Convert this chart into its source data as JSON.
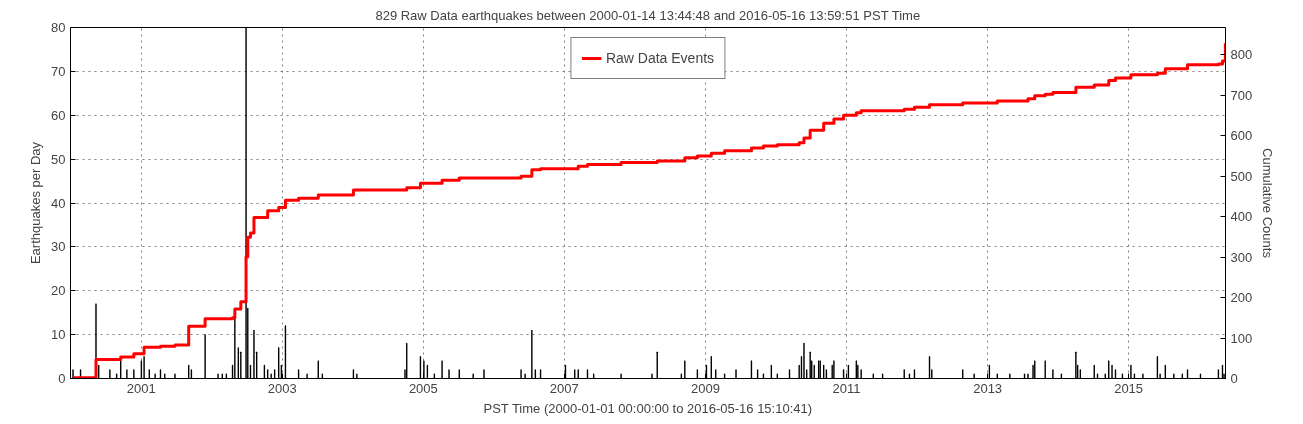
{
  "chart_data": {
    "type": "bar",
    "title": "829 Raw Data earthquakes between 2000-01-14 13:44:48 and 2016-05-16 13:59:51 PST Time",
    "xlabel": "PST Time (2000-01-01 00:00:00 to 2016-05-16 15:10:41)",
    "ylabel": "Earthquakes per Day",
    "y2label": "Cumulative Counts",
    "xlim": [
      "2000-01-01",
      "2016-05-16T15:10"
    ],
    "xticks": [
      {
        "value": "2001-01-01",
        "label": "2001"
      },
      {
        "value": "2003-01-01",
        "label": "2003"
      },
      {
        "value": "2005-01-01",
        "label": "2005"
      },
      {
        "value": "2007-01-01",
        "label": "2007"
      },
      {
        "value": "2009-01-01",
        "label": "2009"
      },
      {
        "value": "2011-01-01",
        "label": "2011"
      },
      {
        "value": "2013-01-01",
        "label": "2013"
      },
      {
        "value": "2015-01-01",
        "label": "2015"
      }
    ],
    "ylim": [
      0,
      80
    ],
    "yticks": [
      0,
      10,
      20,
      30,
      40,
      50,
      60,
      70,
      80
    ],
    "y2lim": [
      0,
      868
    ],
    "y2ticks": [
      0,
      100,
      200,
      300,
      400,
      500,
      600,
      700,
      800
    ],
    "grid": true,
    "legend": "top",
    "series": [
      {
        "color": "#000000",
        "x": [
          "2000-01-14",
          "2000-02-22",
          "2000-05-12",
          "2000-05-26",
          "2000-07-23",
          "2000-08-27",
          "2000-09-17",
          "2000-10-19",
          "2000-11-24",
          "2001-01-02",
          "2001-01-16",
          "2001-02-12",
          "2001-03-14",
          "2001-04-11",
          "2001-05-03",
          "2001-06-25",
          "2001-09-04",
          "2001-09-18",
          "2001-11-28",
          "2002-02-03",
          "2002-02-25",
          "2002-03-18",
          "2002-04-19",
          "2002-05-01",
          "2002-05-19",
          "2002-06-01",
          "2002-06-28",
          "2002-07-07",
          "2002-07-21",
          "2002-08-08",
          "2002-08-22",
          "2002-10-01",
          "2002-10-18",
          "2002-11-05",
          "2002-11-23",
          "2002-12-14",
          "2002-12-28",
          "2003-01-18",
          "2003-03-27",
          "2003-05-10",
          "2003-07-07",
          "2003-07-28",
          "2004-01-05",
          "2004-01-23",
          "2004-09-28",
          "2004-10-07",
          "2004-12-17",
          "2005-01-04",
          "2005-01-22",
          "2005-02-27",
          "2005-04-08",
          "2005-05-14",
          "2005-07-06",
          "2005-09-16",
          "2005-11-11",
          "2006-05-22",
          "2006-06-12",
          "2006-07-17",
          "2006-08-04",
          "2006-08-31",
          "2007-01-07",
          "2007-02-24",
          "2007-03-14",
          "2007-05-01",
          "2007-06-02",
          "2007-10-22",
          "2008-03-30",
          "2008-04-26",
          "2008-08-29",
          "2008-09-16",
          "2008-11-20",
          "2009-01-06",
          "2009-01-31",
          "2009-02-23",
          "2009-04-10",
          "2009-06-08",
          "2009-08-27",
          "2009-09-28",
          "2009-10-28",
          "2009-12-08",
          "2010-01-08",
          "2010-03-12",
          "2010-05-01",
          "2010-05-13",
          "2010-05-26",
          "2010-06-09",
          "2010-06-27",
          "2010-07-05",
          "2010-07-18",
          "2010-08-10",
          "2010-08-18",
          "2010-09-05",
          "2010-09-19",
          "2010-10-19",
          "2010-10-28",
          "2010-12-17",
          "2011-01-11",
          "2011-02-21",
          "2011-03-01",
          "2011-03-18",
          "2011-05-20",
          "2011-07-07",
          "2011-10-27",
          "2011-11-23",
          "2011-12-19",
          "2012-03-06",
          "2012-03-18",
          "2012-08-25",
          "2012-10-23",
          "2013-01-10",
          "2013-02-20",
          "2013-04-26",
          "2013-07-11",
          "2013-07-29",
          "2013-08-24",
          "2013-09-02",
          "2013-10-26",
          "2013-12-05",
          "2014-01-18",
          "2014-04-03",
          "2014-04-12",
          "2014-04-26",
          "2014-07-07",
          "2014-07-24",
          "2014-09-02",
          "2014-09-20",
          "2014-10-07",
          "2014-10-25",
          "2014-11-30",
          "2015-01-13",
          "2015-01-31",
          "2015-03-16",
          "2015-05-30",
          "2015-06-13",
          "2015-07-10",
          "2015-08-23",
          "2015-10-06",
          "2015-11-02",
          "2016-01-08",
          "2016-04-10",
          "2016-05-01",
          "2016-05-09"
        ],
        "values": [
          2,
          2,
          17,
          3,
          2,
          1,
          4,
          2,
          2,
          4,
          5,
          2,
          1,
          2,
          1,
          1,
          3,
          2,
          10,
          1,
          1,
          1,
          3,
          14,
          7,
          6,
          80,
          16,
          3,
          11,
          6,
          3,
          2,
          1,
          2,
          7,
          3,
          12,
          2,
          1,
          4,
          1,
          2,
          1,
          2,
          8,
          5,
          4,
          3,
          1,
          4,
          2,
          2,
          1,
          2,
          2,
          1,
          11,
          2,
          2,
          3,
          2,
          2,
          2,
          1,
          1,
          1,
          6,
          1,
          4,
          2,
          3,
          5,
          2,
          1,
          2,
          4,
          2,
          1,
          3,
          1,
          2,
          3,
          5,
          8,
          2,
          6,
          4,
          3,
          4,
          4,
          3,
          2,
          3,
          4,
          2,
          3,
          4,
          3,
          2,
          1,
          1,
          2,
          1,
          2,
          5,
          2,
          2,
          1,
          3,
          1,
          1,
          1,
          1,
          3,
          4,
          4,
          2,
          1,
          6,
          3,
          2,
          3,
          1,
          1,
          4,
          3,
          2,
          1,
          3,
          1,
          1,
          5,
          1,
          3,
          1,
          1,
          2,
          1,
          2,
          3,
          1
        ]
      },
      {
        "type": "step",
        "name": "Raw Data Events",
        "color": "#ff0000",
        "axis": "y2",
        "x": [
          "2000-01-14",
          "2000-05-12",
          "2000-09-17",
          "2000-11-24",
          "2001-01-16",
          "2001-04-11",
          "2001-06-25",
          "2001-09-04",
          "2001-11-28",
          "2002-04-19",
          "2002-05-01",
          "2002-06-01",
          "2002-06-28",
          "2002-07-07",
          "2002-07-21",
          "2002-08-08",
          "2002-10-18",
          "2002-12-14",
          "2003-01-18",
          "2003-03-27",
          "2003-07-07",
          "2004-01-05",
          "2004-10-07",
          "2004-12-17",
          "2005-04-08",
          "2005-07-06",
          "2006-05-22",
          "2006-07-17",
          "2006-08-31",
          "2007-03-14",
          "2007-05-01",
          "2007-10-22",
          "2008-04-26",
          "2008-09-16",
          "2008-11-20",
          "2009-01-31",
          "2009-04-10",
          "2009-08-27",
          "2009-10-28",
          "2010-01-08",
          "2010-05-01",
          "2010-05-26",
          "2010-06-27",
          "2010-09-05",
          "2010-10-28",
          "2010-12-17",
          "2011-02-21",
          "2011-03-18",
          "2011-10-27",
          "2011-12-19",
          "2012-03-06",
          "2012-08-25",
          "2013-02-20",
          "2013-07-29",
          "2013-09-02",
          "2013-10-26",
          "2013-12-05",
          "2014-04-03",
          "2014-07-07",
          "2014-09-20",
          "2014-10-25",
          "2015-01-13",
          "2015-05-30",
          "2015-07-10",
          "2015-11-02",
          "2016-04-10",
          "2016-05-01",
          "2016-05-16"
        ],
        "values": [
          2,
          47,
          53,
          61,
          77,
          80,
          83,
          129,
          148,
          150,
          172,
          190,
          301,
          349,
          360,
          398,
          415,
          423,
          441,
          446,
          454,
          466,
          472,
          483,
          490,
          496,
          500,
          516,
          519,
          525,
          529,
          534,
          538,
          546,
          550,
          557,
          563,
          570,
          575,
          578,
          583,
          595,
          614,
          631,
          642,
          651,
          657,
          662,
          666,
          671,
          677,
          681,
          686,
          692,
          699,
          703,
          707,
          720,
          726,
          737,
          743,
          751,
          755,
          766,
          776,
          778,
          785,
          829
        ]
      }
    ]
  }
}
